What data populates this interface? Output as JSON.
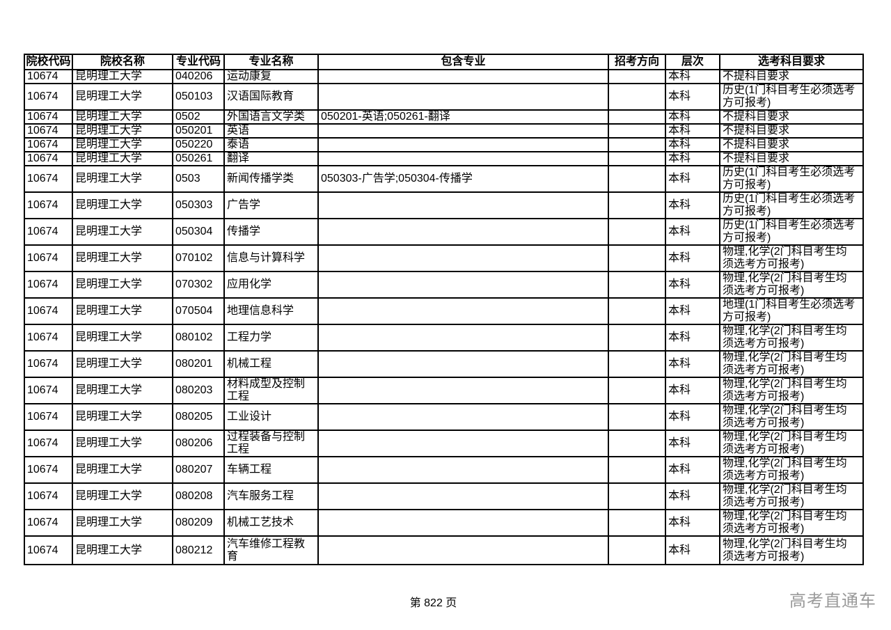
{
  "table": {
    "headers": [
      "院校代码",
      "院校名称",
      "专业代码",
      "专业名称",
      "包含专业",
      "招考方向",
      "层次",
      "选考科目要求"
    ],
    "rows": [
      {
        "college_code": "10674",
        "college_name": "昆明理工大学",
        "major_code": "040206",
        "major_name": "运动康复",
        "included_majors": "",
        "direction": "",
        "level": "本科",
        "subject_req": "不提科目要求"
      },
      {
        "college_code": "10674",
        "college_name": "昆明理工大学",
        "major_code": "050103",
        "major_name": "汉语国际教育",
        "included_majors": "",
        "direction": "",
        "level": "本科",
        "subject_req": "历史(1门科目考生必须选考方可报考)"
      },
      {
        "college_code": "10674",
        "college_name": "昆明理工大学",
        "major_code": "0502",
        "major_name": "外国语言文学类",
        "included_majors": "050201-英语;050261-翻译",
        "direction": "",
        "level": "本科",
        "subject_req": "不提科目要求"
      },
      {
        "college_code": "10674",
        "college_name": "昆明理工大学",
        "major_code": "050201",
        "major_name": "英语",
        "included_majors": "",
        "direction": "",
        "level": "本科",
        "subject_req": "不提科目要求"
      },
      {
        "college_code": "10674",
        "college_name": "昆明理工大学",
        "major_code": "050220",
        "major_name": "泰语",
        "included_majors": "",
        "direction": "",
        "level": "本科",
        "subject_req": "不提科目要求"
      },
      {
        "college_code": "10674",
        "college_name": "昆明理工大学",
        "major_code": "050261",
        "major_name": "翻译",
        "included_majors": "",
        "direction": "",
        "level": "本科",
        "subject_req": "不提科目要求"
      },
      {
        "college_code": "10674",
        "college_name": "昆明理工大学",
        "major_code": "0503",
        "major_name": "新闻传播学类",
        "included_majors": "050303-广告学;050304-传播学",
        "direction": "",
        "level": "本科",
        "subject_req": "历史(1门科目考生必须选考方可报考)"
      },
      {
        "college_code": "10674",
        "college_name": "昆明理工大学",
        "major_code": "050303",
        "major_name": "广告学",
        "included_majors": "",
        "direction": "",
        "level": "本科",
        "subject_req": "历史(1门科目考生必须选考方可报考)"
      },
      {
        "college_code": "10674",
        "college_name": "昆明理工大学",
        "major_code": "050304",
        "major_name": "传播学",
        "included_majors": "",
        "direction": "",
        "level": "本科",
        "subject_req": "历史(1门科目考生必须选考方可报考)"
      },
      {
        "college_code": "10674",
        "college_name": "昆明理工大学",
        "major_code": "070102",
        "major_name": "信息与计算科学",
        "included_majors": "",
        "direction": "",
        "level": "本科",
        "subject_req": "物理,化学(2门科目考生均须选考方可报考)"
      },
      {
        "college_code": "10674",
        "college_name": "昆明理工大学",
        "major_code": "070302",
        "major_name": "应用化学",
        "included_majors": "",
        "direction": "",
        "level": "本科",
        "subject_req": "物理,化学(2门科目考生均须选考方可报考)"
      },
      {
        "college_code": "10674",
        "college_name": "昆明理工大学",
        "major_code": "070504",
        "major_name": "地理信息科学",
        "included_majors": "",
        "direction": "",
        "level": "本科",
        "subject_req": "地理(1门科目考生必须选考方可报考)"
      },
      {
        "college_code": "10674",
        "college_name": "昆明理工大学",
        "major_code": "080102",
        "major_name": "工程力学",
        "included_majors": "",
        "direction": "",
        "level": "本科",
        "subject_req": "物理,化学(2门科目考生均须选考方可报考)"
      },
      {
        "college_code": "10674",
        "college_name": "昆明理工大学",
        "major_code": "080201",
        "major_name": "机械工程",
        "included_majors": "",
        "direction": "",
        "level": "本科",
        "subject_req": "物理,化学(2门科目考生均须选考方可报考)"
      },
      {
        "college_code": "10674",
        "college_name": "昆明理工大学",
        "major_code": "080203",
        "major_name": "材料成型及控制工程",
        "included_majors": "",
        "direction": "",
        "level": "本科",
        "subject_req": "物理,化学(2门科目考生均须选考方可报考)"
      },
      {
        "college_code": "10674",
        "college_name": "昆明理工大学",
        "major_code": "080205",
        "major_name": "工业设计",
        "included_majors": "",
        "direction": "",
        "level": "本科",
        "subject_req": "物理,化学(2门科目考生均须选考方可报考)"
      },
      {
        "college_code": "10674",
        "college_name": "昆明理工大学",
        "major_code": "080206",
        "major_name": "过程装备与控制工程",
        "included_majors": "",
        "direction": "",
        "level": "本科",
        "subject_req": "物理,化学(2门科目考生均须选考方可报考)"
      },
      {
        "college_code": "10674",
        "college_name": "昆明理工大学",
        "major_code": "080207",
        "major_name": "车辆工程",
        "included_majors": "",
        "direction": "",
        "level": "本科",
        "subject_req": "物理,化学(2门科目考生均须选考方可报考)"
      },
      {
        "college_code": "10674",
        "college_name": "昆明理工大学",
        "major_code": "080208",
        "major_name": "汽车服务工程",
        "included_majors": "",
        "direction": "",
        "level": "本科",
        "subject_req": "物理,化学(2门科目考生均须选考方可报考)"
      },
      {
        "college_code": "10674",
        "college_name": "昆明理工大学",
        "major_code": "080209",
        "major_name": "机械工艺技术",
        "included_majors": "",
        "direction": "",
        "level": "本科",
        "subject_req": "物理,化学(2门科目考生均须选考方可报考)"
      },
      {
        "college_code": "10674",
        "college_name": "昆明理工大学",
        "major_code": "080212",
        "major_name": "汽车维修工程教育",
        "included_majors": "",
        "direction": "",
        "level": "本科",
        "subject_req": "物理,化学(2门科目考生均须选考方可报考)"
      }
    ]
  },
  "footer": {
    "page_label": "第 822 页",
    "watermark": "高考直通车"
  },
  "colors": {
    "background": "#ffffff",
    "border": "#000000",
    "text": "#000000",
    "watermark": "#9a9a9a"
  }
}
